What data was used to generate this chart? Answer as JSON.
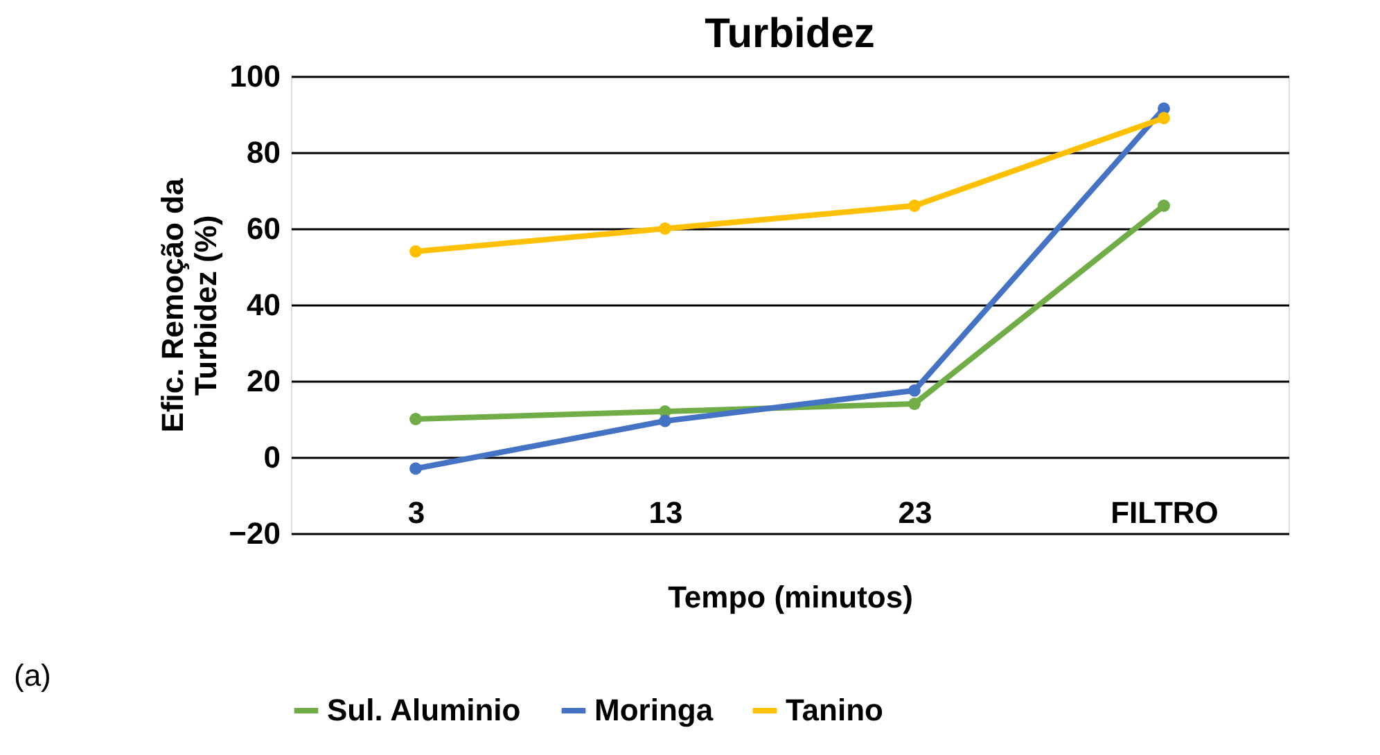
{
  "chart_data": {
    "type": "line",
    "title": "Turbidez",
    "xlabel": "Tempo (minutos)",
    "ylabel": "Efic. Remoção da\nTurbidez (%)",
    "categories": [
      "3",
      "13",
      "23",
      "FILTRO"
    ],
    "series": [
      {
        "name": "Sul. Aluminio",
        "color": "#70ad47",
        "values": [
          10,
          12,
          14,
          66
        ]
      },
      {
        "name": "Moringa",
        "color": "#4472c4",
        "values": [
          -3,
          9.5,
          17.5,
          91.5
        ]
      },
      {
        "name": "Tanino",
        "color": "#ffc000",
        "values": [
          54,
          60,
          66,
          89
        ]
      }
    ],
    "ylim": [
      -20,
      100
    ],
    "yticks": [
      -20,
      0,
      20,
      40,
      60,
      80,
      100
    ],
    "grid": "y",
    "legend": "bottom",
    "marker": "circle",
    "line_style": "solid",
    "annotations": [
      "(a)"
    ]
  }
}
